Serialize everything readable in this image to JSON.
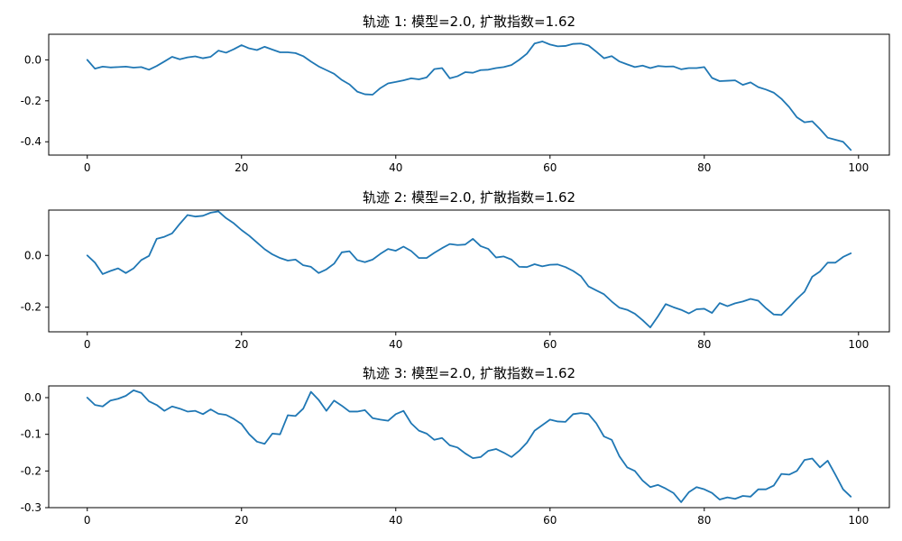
{
  "chart_data": [
    {
      "type": "line",
      "title": "轨迹 1: 模型=2.0, 扩散指数=1.62",
      "xlabel": "",
      "ylabel": "",
      "xlim": [
        -5,
        104
      ],
      "ylim": [
        -0.465,
        0.125
      ],
      "xticks": [
        0,
        20,
        40,
        60,
        80,
        100
      ],
      "xtick_labels": [
        "0",
        "20",
        "40",
        "60",
        "80",
        "100"
      ],
      "yticks": [
        0.0,
        -0.2,
        -0.4
      ],
      "ytick_labels": [
        "0.0",
        "-0.2",
        "-0.4"
      ],
      "grid": false,
      "series": [
        {
          "color": "#1f77b4",
          "x": [
            0,
            1,
            2,
            3,
            4,
            5,
            6,
            7,
            8,
            9,
            10,
            11,
            12,
            13,
            14,
            15,
            16,
            17,
            18,
            19,
            20,
            21,
            22,
            23,
            24,
            25,
            26,
            27,
            28,
            29,
            30,
            31,
            32,
            33,
            34,
            35,
            36,
            37,
            38,
            39,
            40,
            41,
            42,
            43,
            44,
            45,
            46,
            47,
            48,
            49,
            50,
            51,
            52,
            53,
            54,
            55,
            56,
            57,
            58,
            59,
            60,
            61,
            62,
            63,
            64,
            65,
            66,
            67,
            68,
            69,
            70,
            71,
            72,
            73,
            74,
            75,
            76,
            77,
            78,
            79,
            80,
            81,
            82,
            83,
            84,
            85,
            86,
            87,
            88,
            89,
            90,
            91,
            92,
            93,
            94,
            95,
            96,
            97,
            98,
            99
          ],
          "values": [
            0.0,
            -0.043,
            -0.033,
            -0.037,
            -0.035,
            -0.033,
            -0.038,
            -0.035,
            -0.048,
            -0.03,
            -0.008,
            0.015,
            0.003,
            0.012,
            0.017,
            0.008,
            0.015,
            0.045,
            0.035,
            0.052,
            0.072,
            0.056,
            0.048,
            0.064,
            0.05,
            0.037,
            0.037,
            0.033,
            0.018,
            -0.008,
            -0.032,
            -0.05,
            -0.068,
            -0.098,
            -0.12,
            -0.155,
            -0.168,
            -0.17,
            -0.138,
            -0.115,
            -0.108,
            -0.1,
            -0.09,
            -0.095,
            -0.086,
            -0.045,
            -0.04,
            -0.09,
            -0.08,
            -0.06,
            -0.063,
            -0.05,
            -0.048,
            -0.04,
            -0.035,
            -0.025,
            0.0,
            0.03,
            0.08,
            0.09,
            0.075,
            0.066,
            0.068,
            0.078,
            0.08,
            0.07,
            0.04,
            0.008,
            0.018,
            -0.008,
            -0.022,
            -0.035,
            -0.028,
            -0.04,
            -0.03,
            -0.033,
            -0.032,
            -0.046,
            -0.04,
            -0.04,
            -0.035,
            -0.088,
            -0.104,
            -0.102,
            -0.1,
            -0.122,
            -0.11,
            -0.133,
            -0.145,
            -0.16,
            -0.19,
            -0.23,
            -0.28,
            -0.305,
            -0.3,
            -0.338,
            -0.38,
            -0.39,
            -0.4,
            -0.44
          ]
        }
      ]
    },
    {
      "type": "line",
      "title": "轨迹 2: 模型=2.0, 扩散指数=1.62",
      "xlabel": "",
      "ylabel": "",
      "xlim": [
        -5,
        104
      ],
      "ylim": [
        -0.295,
        0.175
      ],
      "xticks": [
        0,
        20,
        40,
        60,
        80,
        100
      ],
      "xtick_labels": [
        "0",
        "20",
        "40",
        "60",
        "80",
        "100"
      ],
      "yticks": [
        0.0,
        -0.2
      ],
      "ytick_labels": [
        "0.0",
        "-0.2"
      ],
      "grid": false,
      "series": [
        {
          "color": "#1f77b4",
          "x": [
            0,
            1,
            2,
            3,
            4,
            5,
            6,
            7,
            8,
            9,
            10,
            11,
            12,
            13,
            14,
            15,
            16,
            17,
            18,
            19,
            20,
            21,
            22,
            23,
            24,
            25,
            26,
            27,
            28,
            29,
            30,
            31,
            32,
            33,
            34,
            35,
            36,
            37,
            38,
            39,
            40,
            41,
            42,
            43,
            44,
            45,
            46,
            47,
            48,
            49,
            50,
            51,
            52,
            53,
            54,
            55,
            56,
            57,
            58,
            59,
            60,
            61,
            62,
            63,
            64,
            65,
            66,
            67,
            68,
            69,
            70,
            71,
            72,
            73,
            74,
            75,
            76,
            77,
            78,
            79,
            80,
            81,
            82,
            83,
            84,
            85,
            86,
            87,
            88,
            89,
            90,
            91,
            92,
            93,
            94,
            95,
            96,
            97,
            98,
            99
          ],
          "values": [
            0.0,
            -0.028,
            -0.072,
            -0.06,
            -0.05,
            -0.068,
            -0.05,
            -0.018,
            -0.002,
            0.064,
            0.072,
            0.085,
            0.122,
            0.156,
            0.15,
            0.153,
            0.165,
            0.17,
            0.144,
            0.124,
            0.098,
            0.076,
            0.05,
            0.024,
            0.004,
            -0.01,
            -0.02,
            -0.016,
            -0.038,
            -0.044,
            -0.068,
            -0.054,
            -0.032,
            0.012,
            0.016,
            -0.018,
            -0.026,
            -0.016,
            0.006,
            0.025,
            0.018,
            0.034,
            0.017,
            -0.01,
            -0.01,
            0.01,
            0.028,
            0.044,
            0.04,
            0.042,
            0.064,
            0.036,
            0.025,
            -0.008,
            -0.004,
            -0.016,
            -0.044,
            -0.045,
            -0.034,
            -0.042,
            -0.036,
            -0.035,
            -0.045,
            -0.06,
            -0.08,
            -0.12,
            -0.135,
            -0.15,
            -0.178,
            -0.202,
            -0.21,
            -0.225,
            -0.25,
            -0.278,
            -0.235,
            -0.188,
            -0.2,
            -0.21,
            -0.224,
            -0.208,
            -0.206,
            -0.222,
            -0.184,
            -0.196,
            -0.185,
            -0.178,
            -0.168,
            -0.175,
            -0.204,
            -0.228,
            -0.23,
            -0.2,
            -0.168,
            -0.14,
            -0.082,
            -0.062,
            -0.028,
            -0.028,
            -0.006,
            0.008
          ]
        }
      ]
    },
    {
      "type": "line",
      "title": "轨迹 3: 模型=2.0, 扩散指数=1.62",
      "xlabel": "",
      "ylabel": "",
      "xlim": [
        -5,
        104
      ],
      "ylim": [
        -0.3,
        0.032
      ],
      "xticks": [
        0,
        20,
        40,
        60,
        80,
        100
      ],
      "xtick_labels": [
        "0",
        "20",
        "40",
        "60",
        "80",
        "100"
      ],
      "yticks": [
        0.0,
        -0.1,
        -0.2,
        -0.3
      ],
      "ytick_labels": [
        "0.0",
        "-0.1",
        "-0.2",
        "-0.3"
      ],
      "grid": false,
      "series": [
        {
          "color": "#1f77b4",
          "x": [
            0,
            1,
            2,
            3,
            4,
            5,
            6,
            7,
            8,
            9,
            10,
            11,
            12,
            13,
            14,
            15,
            16,
            17,
            18,
            19,
            20,
            21,
            22,
            23,
            24,
            25,
            26,
            27,
            28,
            29,
            30,
            31,
            32,
            33,
            34,
            35,
            36,
            37,
            38,
            39,
            40,
            41,
            42,
            43,
            44,
            45,
            46,
            47,
            48,
            49,
            50,
            51,
            52,
            53,
            54,
            55,
            56,
            57,
            58,
            59,
            60,
            61,
            62,
            63,
            64,
            65,
            66,
            67,
            68,
            69,
            70,
            71,
            72,
            73,
            74,
            75,
            76,
            77,
            78,
            79,
            80,
            81,
            82,
            83,
            84,
            85,
            86,
            87,
            88,
            89,
            90,
            91,
            92,
            93,
            94,
            95,
            96,
            97,
            98,
            99
          ],
          "values": [
            0.0,
            -0.02,
            -0.024,
            -0.008,
            -0.003,
            0.005,
            0.02,
            0.013,
            -0.01,
            -0.02,
            -0.036,
            -0.024,
            -0.03,
            -0.038,
            -0.036,
            -0.045,
            -0.032,
            -0.044,
            -0.047,
            -0.058,
            -0.072,
            -0.1,
            -0.12,
            -0.126,
            -0.098,
            -0.1,
            -0.048,
            -0.05,
            -0.03,
            0.016,
            -0.006,
            -0.036,
            -0.008,
            -0.022,
            -0.038,
            -0.038,
            -0.034,
            -0.056,
            -0.06,
            -0.063,
            -0.045,
            -0.036,
            -0.07,
            -0.09,
            -0.098,
            -0.115,
            -0.11,
            -0.13,
            -0.136,
            -0.152,
            -0.165,
            -0.162,
            -0.145,
            -0.14,
            -0.15,
            -0.162,
            -0.145,
            -0.123,
            -0.09,
            -0.075,
            -0.06,
            -0.065,
            -0.066,
            -0.045,
            -0.042,
            -0.045,
            -0.07,
            -0.106,
            -0.115,
            -0.16,
            -0.19,
            -0.2,
            -0.226,
            -0.244,
            -0.238,
            -0.248,
            -0.26,
            -0.285,
            -0.258,
            -0.244,
            -0.25,
            -0.26,
            -0.278,
            -0.272,
            -0.276,
            -0.268,
            -0.27,
            -0.25,
            -0.25,
            -0.24,
            -0.208,
            -0.21,
            -0.2,
            -0.17,
            -0.166,
            -0.19,
            -0.172,
            -0.21,
            -0.25,
            -0.27
          ]
        }
      ]
    }
  ]
}
